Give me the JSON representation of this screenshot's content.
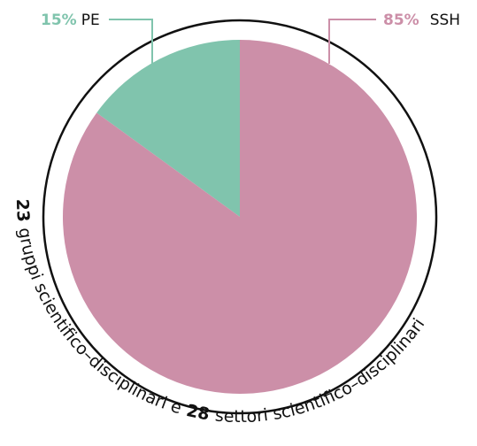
{
  "chart_data": {
    "type": "pie",
    "categories": [
      "PE",
      "SSH"
    ],
    "values": [
      15,
      85
    ],
    "value_labels": [
      "15%",
      "85%"
    ],
    "colors": [
      "#80c4ad",
      "#cc8fa8"
    ],
    "annotation": [
      "23",
      "gruppi scientifico–disciplinari e",
      "28",
      "settori scientifico–disciplinari"
    ]
  }
}
